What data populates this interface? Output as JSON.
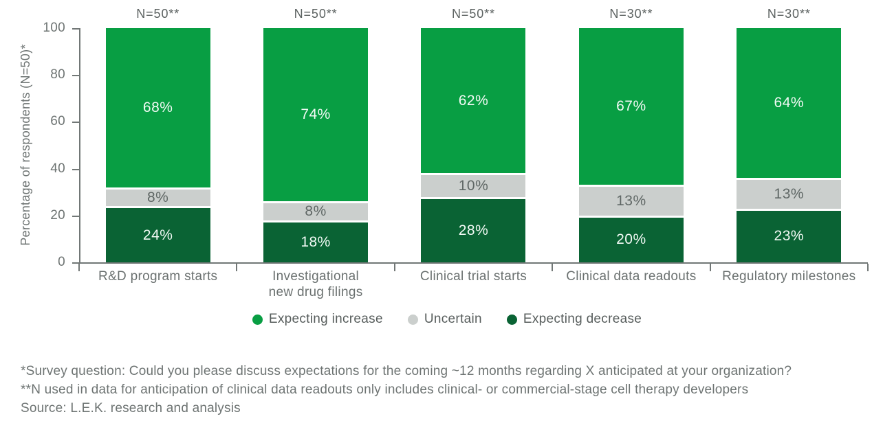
{
  "chart_data": {
    "type": "bar",
    "stacked": true,
    "categories": [
      [
        "R&D program starts"
      ],
      [
        "Investigational",
        "new drug filings"
      ],
      [
        "Clinical trial starts"
      ],
      [
        "Clinical data readouts"
      ],
      [
        "Regulatory milestones"
      ]
    ],
    "n_labels": [
      "N=50**",
      "N=50**",
      "N=50**",
      "N=30**",
      "N=30**"
    ],
    "series": [
      {
        "name": "Expecting increase",
        "color": "#089e43",
        "label_color": "#f2faf5",
        "values": [
          68,
          74,
          62,
          67,
          64
        ]
      },
      {
        "name": "Uncertain",
        "color": "#cbcfcd",
        "label_color": "#5f6765",
        "values": [
          8,
          8,
          10,
          13,
          13
        ]
      },
      {
        "name": "Expecting decrease",
        "color": "#0a6334",
        "label_color": "#f2faf5",
        "values": [
          24,
          18,
          28,
          20,
          23
        ]
      }
    ],
    "value_suffix": "%",
    "ylabel": "Percentage of respondents (N=50)*",
    "ylim": [
      0,
      100
    ],
    "yticks": [
      0,
      20,
      40,
      60,
      80,
      100
    ],
    "grid": false,
    "legend_position": "bottom"
  },
  "footnotes": {
    "lines": [
      "*Survey question: Could you please discuss expectations for the coming ~12 months regarding X anticipated at your organization?",
      "**N used in data for anticipation of clinical data readouts only includes clinical- or commercial-stage cell therapy developers",
      "Source: L.E.K. research and analysis"
    ]
  },
  "colors": {
    "axis": "#717776",
    "muted_text": "#6e7473",
    "legend_text": "#575d5c",
    "background": "#ffffff"
  }
}
